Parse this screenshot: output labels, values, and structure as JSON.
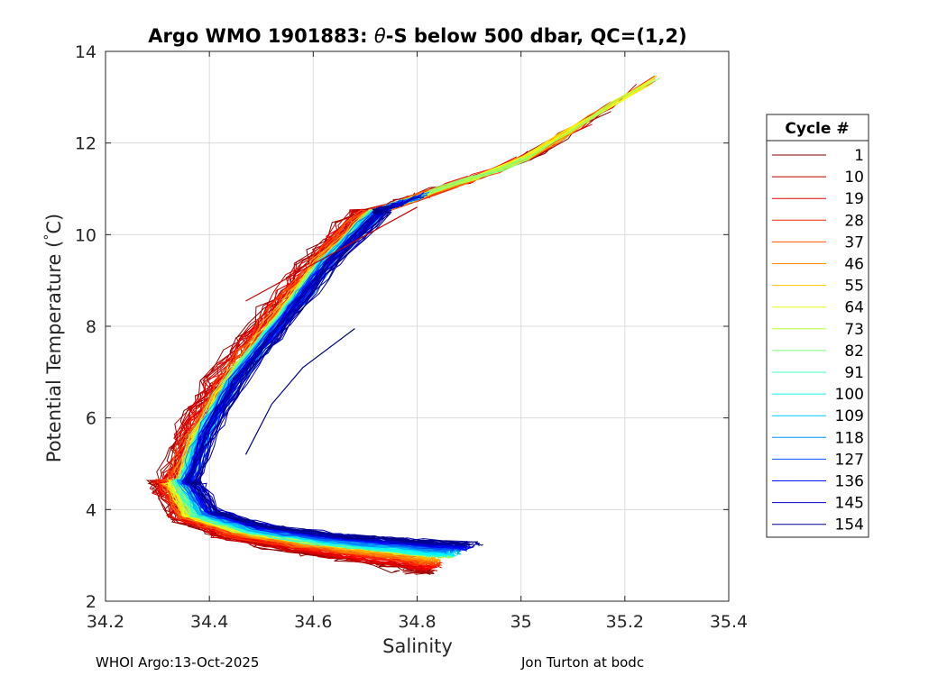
{
  "footer": {
    "left": "WHOI Argo:13-Oct-2025",
    "right": "Jon Turton at bodc"
  },
  "chart_data": {
    "type": "line",
    "title_text": "Argo WMO 1901883: ",
    "title_theta": "θ",
    "title_rest": "-S below 500 dbar,  QC=(1,2)",
    "xlabel": "Salinity",
    "ylabel_text": "Potential Temperature (",
    "ylabel_deg": "°",
    "ylabel_unit": "C)",
    "xlim": [
      34.2,
      35.4
    ],
    "ylim": [
      2,
      14
    ],
    "xticks": [
      34.2,
      34.4,
      34.6,
      34.8,
      35,
      35.2,
      35.4
    ],
    "xtick_labels": [
      "34.2",
      "34.4",
      "34.6",
      "34.8",
      "35",
      "35.2",
      "35.4"
    ],
    "yticks": [
      2,
      4,
      6,
      8,
      10,
      12,
      14
    ],
    "ytick_labels": [
      "2",
      "4",
      "6",
      "8",
      "10",
      "12",
      "14"
    ],
    "grid": true,
    "legend_title": "Cycle #",
    "legend_position": "right-outside",
    "legend": [
      {
        "label": "1",
        "color": "#800000"
      },
      {
        "label": "10",
        "color": "#b40000"
      },
      {
        "label": "19",
        "color": "#e00000"
      },
      {
        "label": "28",
        "color": "#f52500"
      },
      {
        "label": "37",
        "color": "#ff5200"
      },
      {
        "label": "46",
        "color": "#ff8800"
      },
      {
        "label": "55",
        "color": "#ffc400"
      },
      {
        "label": "64",
        "color": "#e6ff10"
      },
      {
        "label": "73",
        "color": "#b8ff40"
      },
      {
        "label": "82",
        "color": "#7dff7a"
      },
      {
        "label": "91",
        "color": "#40ffb8"
      },
      {
        "label": "100",
        "color": "#10f4e6"
      },
      {
        "label": "109",
        "color": "#00c8ff"
      },
      {
        "label": "118",
        "color": "#0090ff"
      },
      {
        "label": "127",
        "color": "#0050ff"
      },
      {
        "label": "136",
        "color": "#0010ff"
      },
      {
        "label": "145",
        "color": "#0000c8"
      },
      {
        "label": "154",
        "color": "#00008f"
      }
    ],
    "series_template": {
      "description": "theta-S curve shape (salinity, potential temperature) per profile",
      "upper_branch": [
        [
          34.72,
          10.5
        ],
        [
          34.62,
          9.4
        ],
        [
          34.53,
          8.1
        ],
        [
          34.44,
          6.8
        ],
        [
          34.38,
          5.6
        ],
        [
          34.35,
          4.6
        ]
      ],
      "lower_branch": [
        [
          34.35,
          4.6
        ],
        [
          34.38,
          3.9
        ],
        [
          34.47,
          3.55
        ],
        [
          34.6,
          3.3
        ],
        [
          34.72,
          3.15
        ],
        [
          34.84,
          3.0
        ]
      ],
      "warm_tail": [
        [
          34.72,
          10.5
        ],
        [
          35.0,
          11.6
        ],
        [
          35.3,
          13.7
        ]
      ]
    },
    "anomalies": [
      {
        "name": "early-cycle-outlier",
        "points": [
          [
            34.47,
            8.55
          ],
          [
            34.8,
            10.6
          ]
        ]
      },
      {
        "name": "late-cycle-intrusion",
        "points": [
          [
            34.68,
            7.95
          ],
          [
            34.58,
            7.1
          ],
          [
            34.52,
            6.3
          ],
          [
            34.47,
            5.2
          ]
        ]
      }
    ]
  }
}
